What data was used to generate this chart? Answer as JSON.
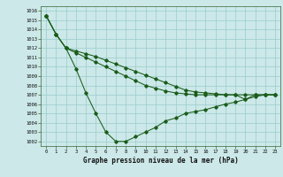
{
  "bg_color": "#cce8e8",
  "grid_color": "#99cccc",
  "line_color": "#1a5c1a",
  "ylim": [
    1001.5,
    1016.5
  ],
  "yticks": [
    1002,
    1003,
    1004,
    1005,
    1006,
    1007,
    1008,
    1009,
    1010,
    1011,
    1012,
    1013,
    1014,
    1015,
    1016
  ],
  "xlim": [
    -0.5,
    23.5
  ],
  "xticks": [
    0,
    1,
    2,
    3,
    4,
    5,
    6,
    7,
    8,
    9,
    10,
    11,
    12,
    13,
    14,
    15,
    16,
    17,
    18,
    19,
    20,
    21,
    22,
    23
  ],
  "xlabel": "Graphe pression niveau de la mer (hPa)",
  "series": [
    [
      1015.5,
      1013.5,
      1012.0,
      1009.8,
      1007.2,
      1005.0,
      1003.0,
      1002.0,
      1002.0,
      1002.5,
      1003.0,
      1003.5,
      1004.2,
      1004.5,
      1005.0,
      1005.2,
      1005.4,
      1005.7,
      1006.0,
      1006.2,
      1006.5,
      1007.0,
      1007.0,
      1007.0
    ],
    [
      1015.5,
      1013.5,
      1012.0,
      1011.5,
      1011.0,
      1010.5,
      1010.0,
      1009.5,
      1009.0,
      1008.5,
      1008.0,
      1007.7,
      1007.4,
      1007.2,
      1007.1,
      1007.0,
      1007.0,
      1007.0,
      1007.0,
      1007.0,
      1007.0,
      1007.0,
      1007.0,
      1007.0
    ],
    [
      1015.5,
      1013.5,
      1012.0,
      1011.7,
      1011.4,
      1011.1,
      1010.7,
      1010.3,
      1009.9,
      1009.5,
      1009.1,
      1008.7,
      1008.3,
      1007.9,
      1007.5,
      1007.3,
      1007.2,
      1007.1,
      1007.0,
      1007.0,
      1006.5,
      1006.8,
      1007.0,
      1007.0
    ]
  ]
}
